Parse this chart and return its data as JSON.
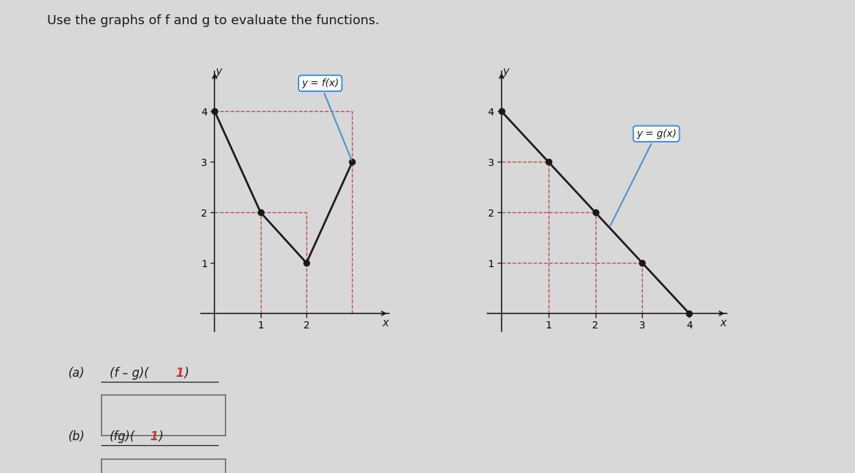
{
  "title": "Use the graphs of f and g to evaluate the functions.",
  "title_fontsize": 13,
  "background_color": "#d8d8d8",
  "f_points": [
    [
      0,
      4
    ],
    [
      1,
      2
    ],
    [
      2,
      1
    ],
    [
      3,
      3
    ]
  ],
  "g_points": [
    [
      0,
      4
    ],
    [
      1,
      3
    ],
    [
      2,
      2
    ],
    [
      3,
      1
    ],
    [
      4,
      0
    ]
  ],
  "line_color": "#1a1a1a",
  "dot_color": "#1a1a1a",
  "dash_color": "#c0392b",
  "f_label": "y = f(x)",
  "g_label": "y = g(x)",
  "label_a": "(a)",
  "label_b": "(b)",
  "task_a": "(f – g)(1)",
  "task_b": "(fg)(1)"
}
